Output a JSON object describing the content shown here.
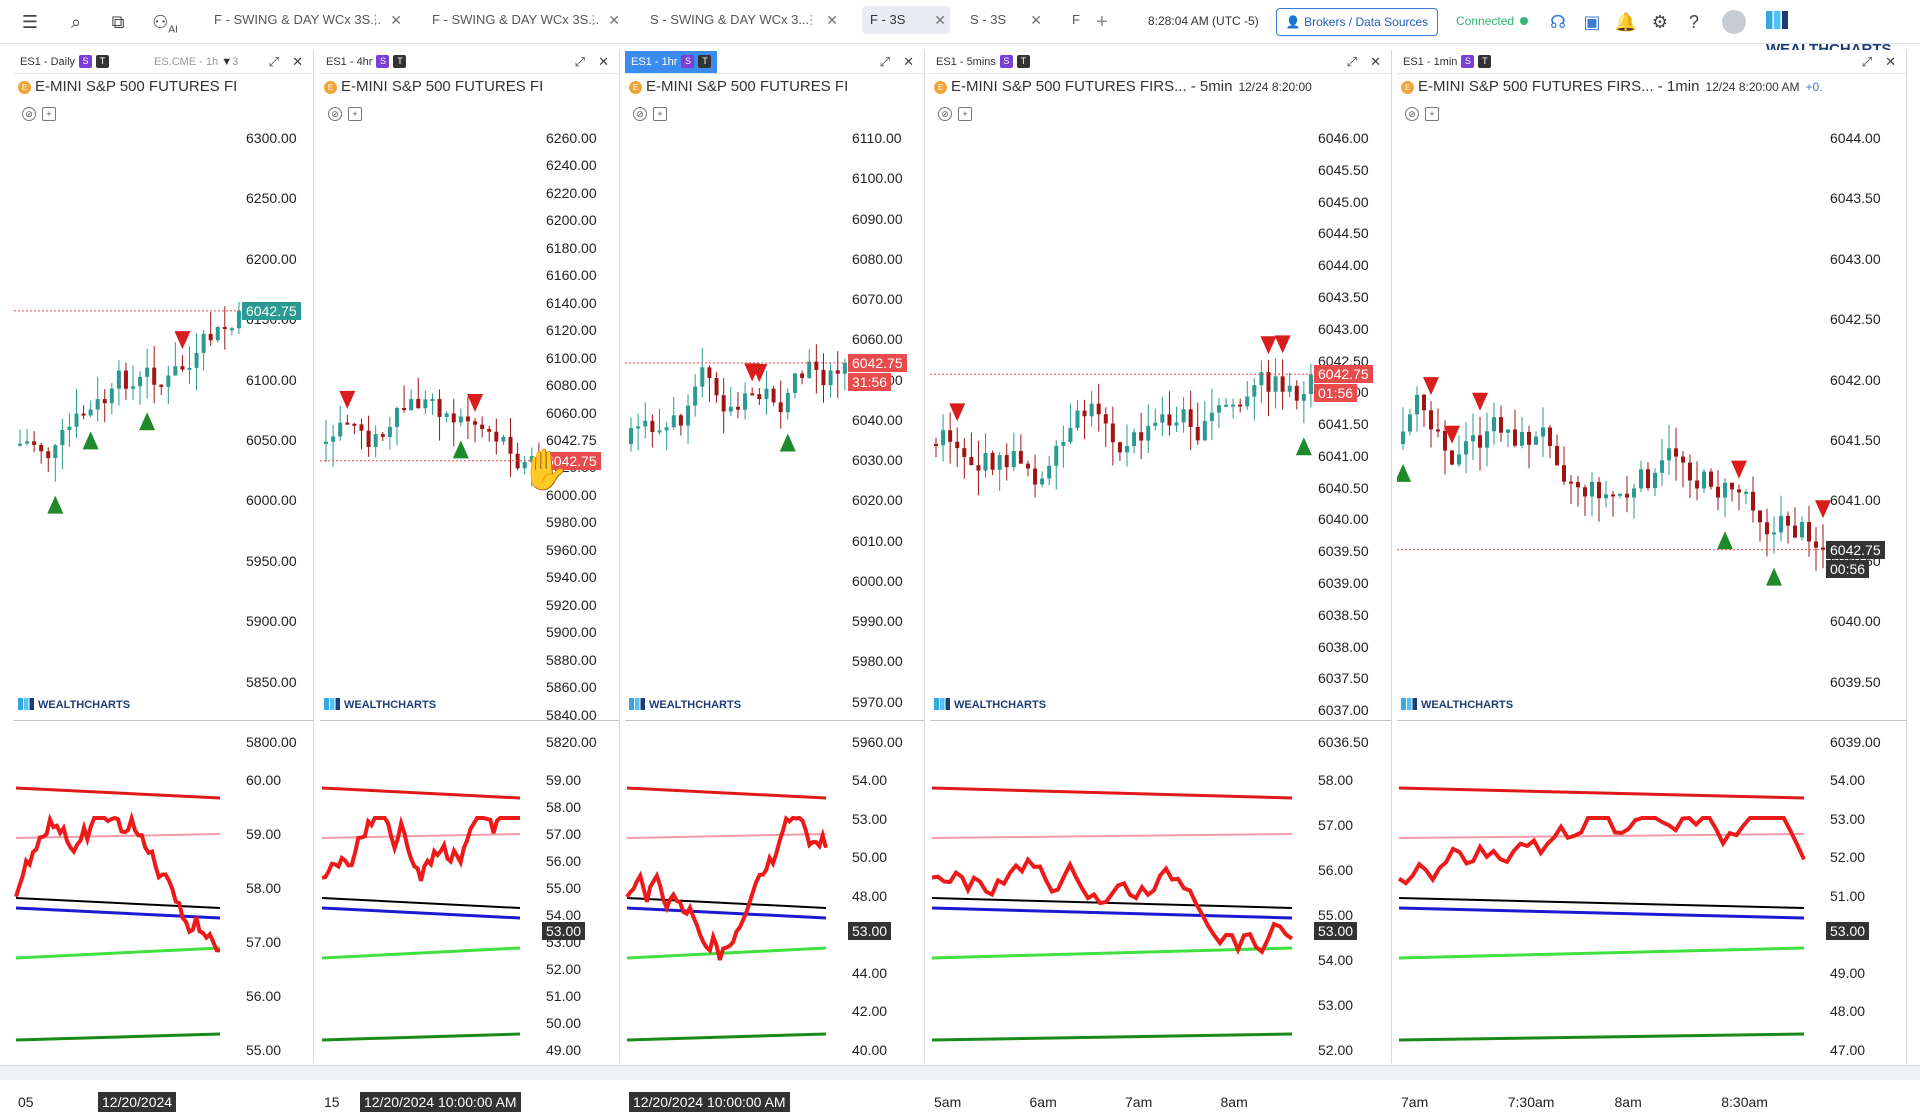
{
  "topbar": {
    "tabs": [
      {
        "label": "F - SWING & DAY WCx 3S...",
        "active": false
      },
      {
        "label": "F - SWING & DAY WCx 3S...",
        "active": false
      },
      {
        "label": "S - SWING & DAY WCx 3...",
        "active": false
      },
      {
        "label": "F - 3S",
        "active": true
      },
      {
        "label": "S - 3S",
        "active": false
      },
      {
        "label": "F",
        "active": false
      }
    ],
    "time": "8:28:04 AM (UTC -5)",
    "brokers_label": "Brokers / Data Sources",
    "status": "Connected",
    "logo": "WEALTHCHARTS",
    "ai_label": "AI"
  },
  "symbol_badge": "E",
  "s_badge": "S",
  "t_badge": "T",
  "watermark": "WEALTHCHARTS",
  "panels": [
    {
      "title": "ES1 - Daily",
      "extra_tab": "ES.CME - 1h",
      "extra_count": "3",
      "selected": false,
      "symbol": "E-MINI S&P 500 FUTURES FI",
      "price_ticks": [
        "6300.00",
        "6250.00",
        "6200.00",
        "6150.00",
        "6100.00",
        "6050.00",
        "6000.00",
        "5950.00",
        "5900.00",
        "5850.00",
        "5800.00"
      ],
      "price_tag": "6042.75",
      "price_tag_color": "teal",
      "osc_ticks": [
        "60.00",
        "59.00",
        "58.00",
        "57.00",
        "56.00",
        "55.00"
      ],
      "x_labels": [
        "05",
        "1"
      ],
      "date_tag": "12/20/2024"
    },
    {
      "title": "ES1 - 4hr",
      "selected": false,
      "symbol": "E-MINI S&P 500 FUTURES FI",
      "price_ticks": [
        "6260.00",
        "6240.00",
        "6220.00",
        "6200.00",
        "6180.00",
        "6160.00",
        "6140.00",
        "6120.00",
        "6100.00",
        "6080.00",
        "6060.00",
        "6042.75",
        "6020.00",
        "6000.00",
        "5980.00",
        "5960.00",
        "5940.00",
        "5920.00",
        "5900.00",
        "5880.00",
        "5860.00",
        "5840.00",
        "5820.00"
      ],
      "price_tag": "6042.75",
      "price_tag_color": "red",
      "osc_ticks": [
        "59.00",
        "58.00",
        "57.00",
        "56.00",
        "55.00",
        "54.00",
        "53.00",
        "52.00",
        "51.00",
        "50.00",
        "49.00"
      ],
      "osc_tag": "53.00",
      "x_labels": [
        "15"
      ],
      "date_tag": "12/20/2024 10:00:00 AM"
    },
    {
      "title": "ES1 - 1hr",
      "selected": true,
      "symbol": "E-MINI S&P 500 FUTURES FI",
      "price_ticks": [
        "6110.00",
        "6100.00",
        "6090.00",
        "6080.00",
        "6070.00",
        "6060.00",
        "6050.00",
        "6040.00",
        "6030.00",
        "6020.00",
        "6010.00",
        "6000.00",
        "5990.00",
        "5980.00",
        "5970.00",
        "5960.00"
      ],
      "price_tag": "6042.75",
      "countdown": "31:56",
      "price_tag_color": "red",
      "osc_ticks": [
        "54.00",
        "53.00",
        "50.00",
        "48.00",
        "46.00",
        "44.00",
        "42.00",
        "40.00"
      ],
      "osc_tag": "53.00",
      "x_labels": [],
      "date_tag": "12/20/2024 10:00:00 AM"
    },
    {
      "title": "ES1 - 5mins",
      "selected": false,
      "symbol": "E-MINI S&P 500 FUTURES FIRS... - 5min",
      "sym_time": "12/24 8:20:00",
      "price_ticks": [
        "6046.00",
        "6045.50",
        "6045.00",
        "6044.50",
        "6044.00",
        "6043.50",
        "6043.00",
        "6042.50",
        "6042.00",
        "6041.50",
        "6041.00",
        "6040.50",
        "6040.00",
        "6039.50",
        "6039.00",
        "6038.50",
        "6038.00",
        "6037.50",
        "6037.00",
        "6036.50"
      ],
      "price_tag": "6042.75",
      "countdown": "01:56",
      "price_tag_color": "red",
      "osc_ticks": [
        "58.00",
        "57.00",
        "56.00",
        "55.00",
        "54.00",
        "53.00",
        "52.00"
      ],
      "osc_tag": "53.00",
      "x_labels": [
        "5am",
        "6am",
        "7am",
        "8am"
      ]
    },
    {
      "title": "ES1 - 1min",
      "selected": false,
      "symbol": "E-MINI S&P 500 FUTURES FIRS... - 1min",
      "sym_time": "12/24 8:20:00 AM",
      "sym_change": "+0.",
      "price_ticks": [
        "6044.00",
        "6043.50",
        "6043.00",
        "6042.50",
        "6042.00",
        "6041.50",
        "6041.00",
        "6040.50",
        "6040.00",
        "6039.50",
        "6039.00"
      ],
      "price_tag": "6042.75",
      "countdown": "00:56",
      "price_tag_color": "dark",
      "osc_ticks": [
        "54.00",
        "53.00",
        "52.00",
        "51.00",
        "50.00",
        "49.00",
        "48.00",
        "47.00"
      ],
      "osc_tag": "53.00",
      "x_labels": [
        "7am",
        "7:30am",
        "8am",
        "8:30am"
      ]
    }
  ]
}
